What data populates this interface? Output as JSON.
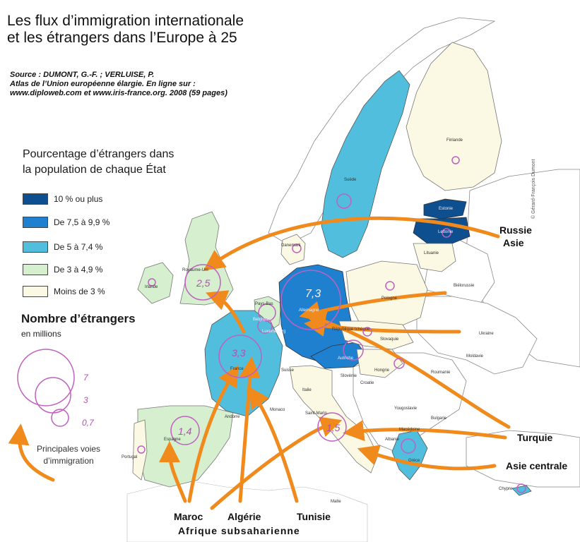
{
  "title": {
    "line1": "Les flux d’immigration internationale",
    "line2": "et les étrangers dans l’Europe à 25"
  },
  "source": {
    "line1": "Source : DUMONT, G.-F. ; VERLUISE, P.",
    "line2": "Atlas de l’Union européenne élargie. En ligne sur :",
    "line3": "www.diploweb.com et www.iris-france.org. 2008 (59 pages)"
  },
  "legend": {
    "title_line1": "Pourcentage d’étrangers dans",
    "title_line2": "la population de chaque État",
    "classes": [
      {
        "label": "10 % ou plus",
        "color": "#0d4f8f"
      },
      {
        "label": "De 7,5 à 9,9 %",
        "color": "#1f80d0"
      },
      {
        "label": "De 5 à 7,4 %",
        "color": "#52bede"
      },
      {
        "label": "De 3 à 4,9 %",
        "color": "#d6efcf"
      },
      {
        "label": "Moins de 3 %",
        "color": "#fbf8e3"
      }
    ],
    "count_title": "Nombre d’étrangers",
    "count_subtitle": "en millions",
    "circle_values": [
      "7",
      "3",
      "0,7"
    ],
    "routes_line1": "Principales voies",
    "routes_line2": "d’immigration",
    "route_color": "#f08a1c",
    "circle_color": "#c060c0"
  },
  "credit": "© Gérard-François Dumont",
  "countries": {
    "finlande": "Finlande",
    "suede": "Suède",
    "estonie": "Estonie",
    "lettonie": "Lettonie",
    "lituanie": "Lituanie",
    "danemark": "Danemark",
    "royaume_uni": "Royaume-Uni",
    "irlande": "Irlande",
    "pays_bas": "Pays-Bas",
    "belgique": "Belgique",
    "luxembourg": "Luxembourg",
    "allemagne": "Allemagne",
    "pologne": "Pologne",
    "bielorussie": "Biélorussie",
    "ukraine": "Ukraine",
    "rep_tcheque": "République tchèque",
    "slovaquie": "Slovaquie",
    "autriche": "Autriche",
    "hongrie": "Hongrie",
    "slovenie": "Slovénie",
    "croatie": "Croatie",
    "roumanie": "Roumanie",
    "moldavie": "Moldavie",
    "suisse": "Suisse",
    "france": "France",
    "italie": "Italie",
    "andorre": "Andorre",
    "monaco": "Monaco",
    "saint_marin": "Saint-Marin",
    "espagne": "Espagne",
    "portugal": "Portugal",
    "yougoslavie": "Yougoslavie",
    "bulgarie": "Bulgarie",
    "macedoine": "Macédoine",
    "albanie": "Albanie",
    "grece": "Grèce",
    "chypre": "Chypre",
    "malte": "Malte"
  },
  "counts": {
    "allemagne": "7,3",
    "france": "3,3",
    "royaume_uni": "2,5",
    "espagne": "1,4",
    "italie": "1,5"
  },
  "origins": {
    "russie": "Russie",
    "asie": "Asie",
    "turquie": "Turquie",
    "asie_centrale": "Asie centrale",
    "maroc": "Maroc",
    "algerie": "Algérie",
    "tunisie": "Tunisie",
    "afrique": "Afrique subsaharienne"
  }
}
